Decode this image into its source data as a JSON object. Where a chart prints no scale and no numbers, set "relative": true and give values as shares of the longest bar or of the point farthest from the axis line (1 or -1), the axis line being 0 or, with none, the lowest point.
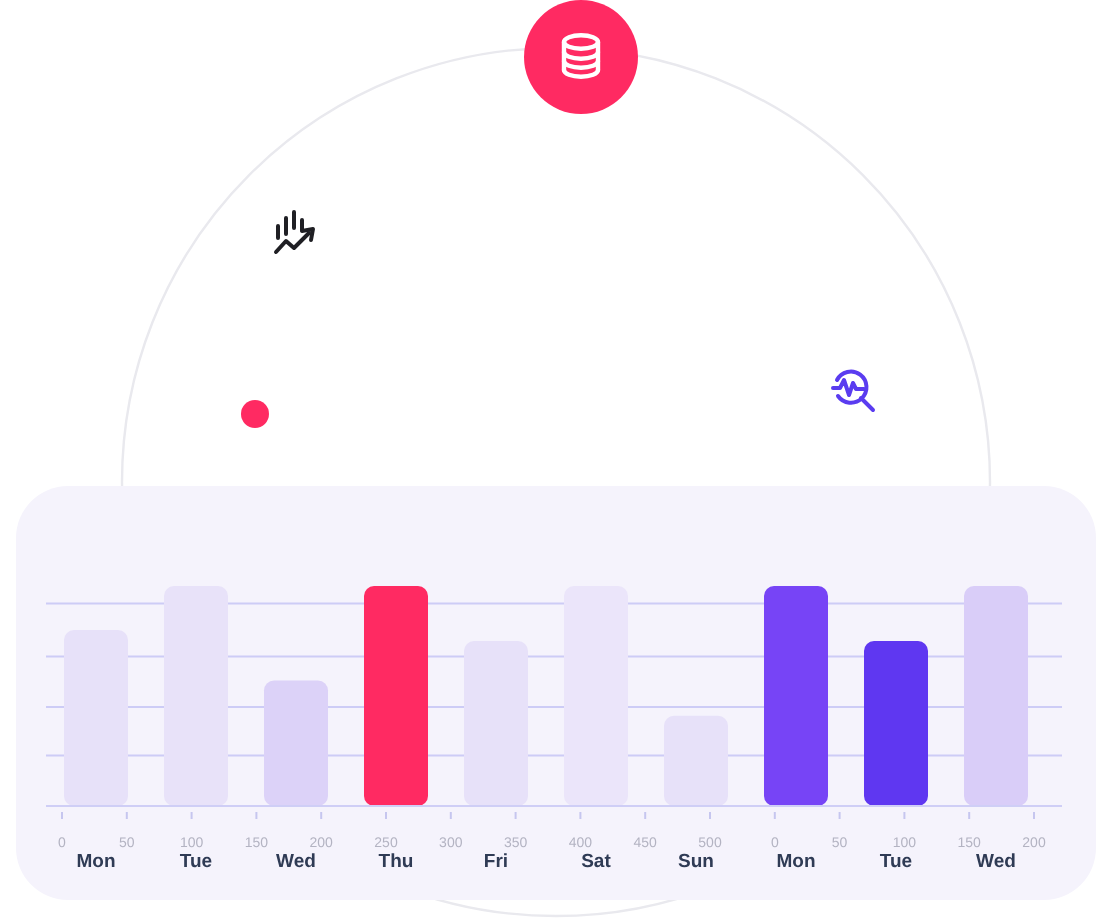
{
  "chart_data": {
    "type": "bar",
    "relative": true,
    "categories": [
      "Mon",
      "Tue",
      "Wed",
      "Thu",
      "Fri",
      "Sat",
      "Sun",
      "Mon",
      "Tue",
      "Wed"
    ],
    "values": [
      0.8,
      1,
      0.57,
      1,
      0.75,
      1,
      0.41,
      1,
      0.75,
      1
    ],
    "colors": [
      "#e7e1f9",
      "#e8e2f9",
      "#dcd2f8",
      "#ff2a62",
      "#e7e1f9",
      "#ebe5fa",
      "#e7e1f9",
      "#7744f6",
      "#5f37f1",
      "#d9cdf8"
    ],
    "annotations": [
      "0",
      "50",
      "100",
      "150",
      "200",
      "250",
      "300",
      "350",
      "400",
      "450",
      "500",
      "0",
      "50",
      "100",
      "150",
      "200"
    ],
    "ref_lines": [
      {
        "axis": "y",
        "value": 0.23,
        "color": "#cdccf6"
      },
      {
        "axis": "y",
        "value": 0.45,
        "color": "#cdccf6"
      },
      {
        "axis": "y",
        "value": 0.68,
        "color": "#cdccf6"
      },
      {
        "axis": "y",
        "value": 0.92,
        "color": "#cdccf6"
      }
    ]
  }
}
